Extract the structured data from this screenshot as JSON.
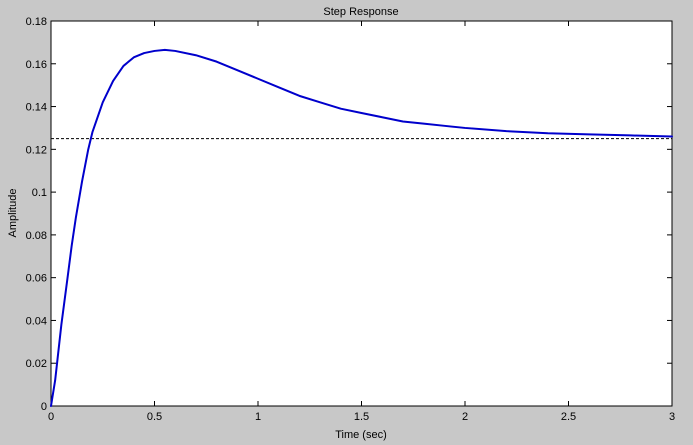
{
  "chart_data": {
    "type": "line",
    "title": "Step Response",
    "xlabel": "Time (sec)",
    "ylabel": "Amplitude",
    "xlim": [
      0,
      3
    ],
    "ylim": [
      0,
      0.18
    ],
    "xticks": [
      0,
      0.5,
      1,
      1.5,
      2,
      2.5,
      3
    ],
    "xtick_labels": [
      "0",
      "0.5",
      "1",
      "1.5",
      "2",
      "2.5",
      "3"
    ],
    "yticks": [
      0,
      0.02,
      0.04,
      0.06,
      0.08,
      0.1,
      0.12,
      0.14,
      0.16,
      0.18
    ],
    "ytick_labels": [
      "0",
      "0.02",
      "0.04",
      "0.06",
      "0.08",
      "0.1",
      "0.12",
      "0.14",
      "0.16",
      "0.18"
    ],
    "grid": false,
    "legend": "none",
    "series": [
      {
        "color": "#0000cc",
        "x": [
          0,
          0.02,
          0.05,
          0.08,
          0.1,
          0.12,
          0.15,
          0.18,
          0.2,
          0.25,
          0.3,
          0.35,
          0.4,
          0.45,
          0.5,
          0.55,
          0.6,
          0.7,
          0.8,
          0.9,
          1.0,
          1.1,
          1.2,
          1.3,
          1.4,
          1.5,
          1.6,
          1.7,
          1.8,
          1.9,
          2.0,
          2.2,
          2.4,
          2.6,
          2.8,
          3.0
        ],
        "y": [
          0,
          0.012,
          0.038,
          0.06,
          0.075,
          0.088,
          0.105,
          0.12,
          0.128,
          0.142,
          0.152,
          0.159,
          0.163,
          0.165,
          0.166,
          0.1665,
          0.166,
          0.164,
          0.161,
          0.157,
          0.153,
          0.149,
          0.145,
          0.142,
          0.139,
          0.137,
          0.135,
          0.133,
          0.132,
          0.131,
          0.13,
          0.1285,
          0.1275,
          0.127,
          0.1265,
          0.126
        ]
      }
    ],
    "reference_line": {
      "y": 0.125,
      "style": "dashed",
      "color": "#000000"
    }
  }
}
